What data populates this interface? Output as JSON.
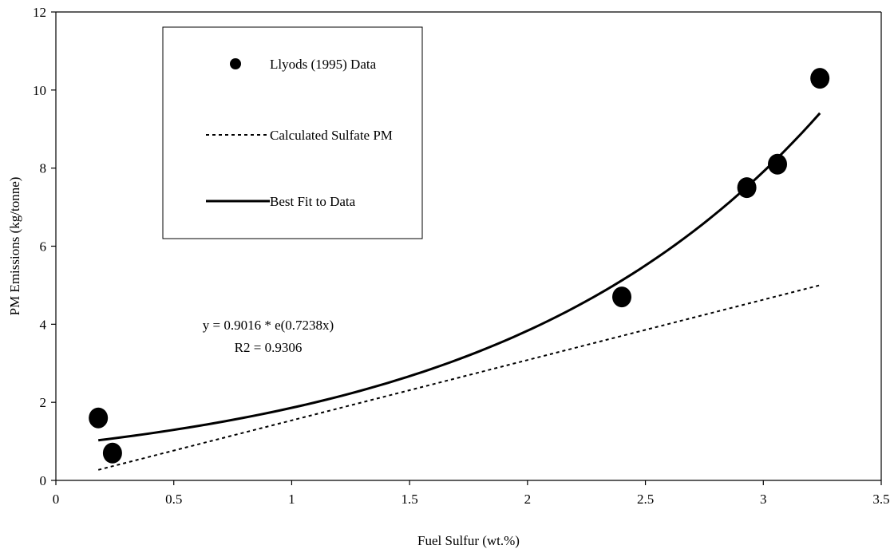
{
  "chart_data": {
    "type": "scatter",
    "xlabel": "Fuel Sulfur (wt.%)",
    "ylabel": "PM Emissions (kg/tonne)",
    "xlim": [
      0,
      3.5
    ],
    "ylim": [
      0,
      12
    ],
    "x_ticks": [
      "0",
      "0.5",
      "1",
      "1.5",
      "2",
      "2.5",
      "3",
      "3.5"
    ],
    "y_ticks": [
      "0",
      "2",
      "4",
      "6",
      "8",
      "10",
      "12"
    ],
    "grid": false,
    "legend_position": "top-left (inside plot)",
    "series": [
      {
        "name": "Llyods (1995) Data",
        "kind": "markers",
        "marker": "filled-circle",
        "color": "#000000",
        "points": [
          {
            "x": 0.18,
            "y": 1.6
          },
          {
            "x": 0.24,
            "y": 0.7
          },
          {
            "x": 2.4,
            "y": 4.7
          },
          {
            "x": 2.93,
            "y": 7.5
          },
          {
            "x": 3.06,
            "y": 8.1
          },
          {
            "x": 3.24,
            "y": 10.3
          }
        ]
      },
      {
        "name": "Calculated Sulfate PM",
        "kind": "line",
        "style": "dotted",
        "color": "#000000",
        "points": [
          {
            "x": 0.18,
            "y": 0.27
          },
          {
            "x": 3.24,
            "y": 5.0
          }
        ]
      },
      {
        "name": "Best Fit to Data",
        "kind": "curve",
        "style": "solid",
        "color": "#000000",
        "formula": {
          "a": 0.9016,
          "b": 0.7238
        },
        "x_range": [
          0.18,
          3.24
        ]
      }
    ],
    "annotations": [
      "y = 0.9016 * e(0.7238x)",
      "R2 = 0.9306"
    ]
  }
}
